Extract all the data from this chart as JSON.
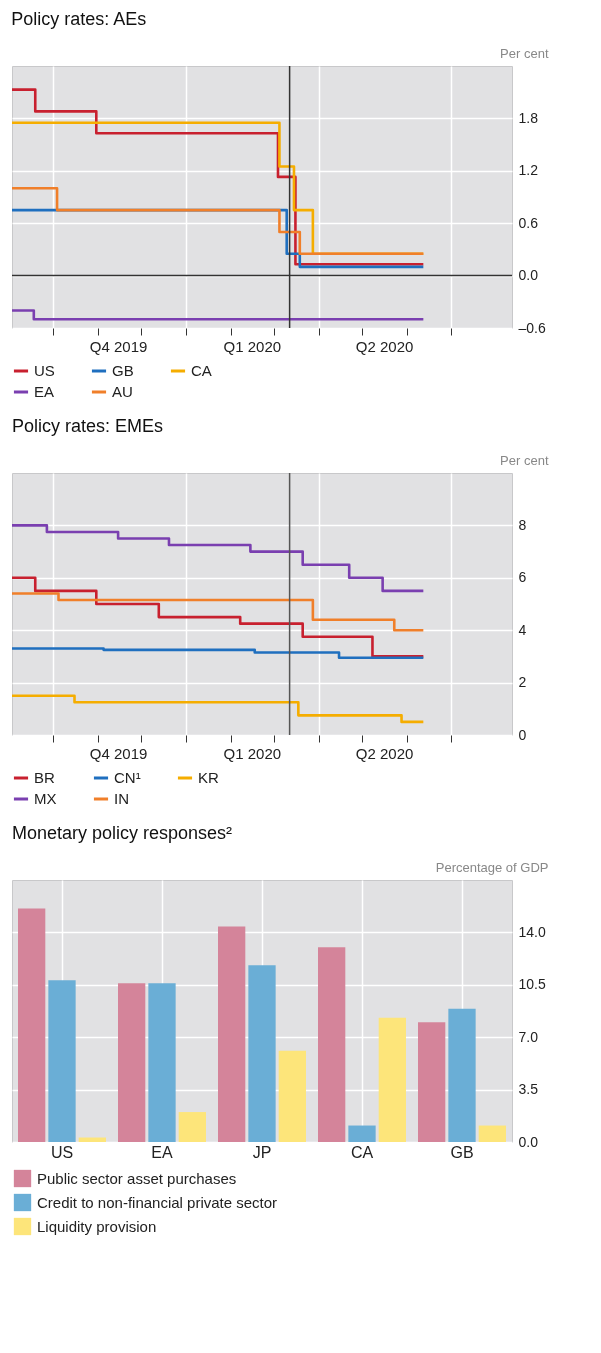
{
  "chart_data": [
    {
      "type": "step",
      "title": "Policy rates: AEs",
      "ylabel": "Per cent",
      "xlim": [
        "2019-09-03",
        "2020-08-12"
      ],
      "ylim": [
        -0.6,
        2.4
      ],
      "yticks": [
        {
          "value": -0.6,
          "label": "–0.6"
        },
        {
          "value": 0,
          "label": "0.0"
        },
        0.6,
        1.2,
        1.8
      ],
      "xticks": [
        {
          "value": "2019-10-01",
          "label": null
        },
        {
          "value": "2019-11-01",
          "label": null
        },
        {
          "value": "2019-12-01",
          "label": null
        },
        {
          "value": "2020-01-01",
          "label": null
        },
        {
          "value": "2020-02-01",
          "label": null
        },
        {
          "value": "2020-03-01",
          "label": null
        },
        {
          "value": "2020-04-01",
          "label": null
        },
        {
          "value": "2020-05-01",
          "label": null
        },
        {
          "value": "2020-06-01",
          "label": null
        },
        {
          "value": "2020-07-01",
          "label": null
        },
        {
          "value": "2019-11-15",
          "label": "Q4 2019"
        },
        {
          "value": "2020-02-15",
          "label": "Q1 2020"
        },
        {
          "value": "2020-05-16",
          "label": "Q2 2020"
        }
      ],
      "grid": true,
      "legend": "bottom",
      "line_style": "solid",
      "marker": "none",
      "ref_lines": [
        {
          "axis": "x",
          "value": "2020-03-12",
          "label": null,
          "color": "#333333"
        },
        {
          "axis": "y",
          "value": 0,
          "label": null,
          "color": "#333333"
        }
      ],
      "series": [
        {
          "name": "US",
          "color": "#c8202f",
          "x": [
            "2019-09-03",
            "2019-09-19",
            "2019-10-31",
            "2020-03-04",
            "2020-03-16",
            "2020-06-12"
          ],
          "values": [
            2.13,
            1.88,
            1.63,
            1.13,
            0.13,
            0.13
          ]
        },
        {
          "name": "GB",
          "color": "#1f6fbf",
          "x": [
            "2019-09-03",
            "2020-03-10",
            "2020-03-19",
            "2020-06-12"
          ],
          "values": [
            0.75,
            0.25,
            0.1,
            0.1
          ]
        },
        {
          "name": "CA",
          "color": "#f5ad00",
          "x": [
            "2019-09-03",
            "2020-03-05",
            "2020-03-15",
            "2020-03-28",
            "2020-06-12"
          ],
          "values": [
            1.75,
            1.25,
            0.75,
            0.25,
            0.25
          ]
        },
        {
          "name": "EA",
          "color": "#7a3fb0",
          "x": [
            "2019-09-03",
            "2019-09-18",
            "2020-06-12"
          ],
          "values": [
            -0.4,
            -0.5,
            -0.5
          ]
        },
        {
          "name": "AU",
          "color": "#f07f2a",
          "x": [
            "2019-09-03",
            "2019-10-04",
            "2020-03-05",
            "2020-03-19",
            "2020-06-12"
          ],
          "values": [
            1.0,
            0.75,
            0.5,
            0.25,
            0.25
          ]
        }
      ]
    },
    {
      "type": "step",
      "title": "Policy rates: EMEs",
      "ylabel": "Per cent",
      "xlim": [
        "2019-09-03",
        "2020-08-12"
      ],
      "ylim": [
        0,
        10
      ],
      "yticks": [
        0,
        2,
        4,
        6,
        8
      ],
      "xticks": [
        {
          "value": "2019-10-01",
          "label": null
        },
        {
          "value": "2019-11-01",
          "label": null
        },
        {
          "value": "2019-12-01",
          "label": null
        },
        {
          "value": "2020-01-01",
          "label": null
        },
        {
          "value": "2020-02-01",
          "label": null
        },
        {
          "value": "2020-03-01",
          "label": null
        },
        {
          "value": "2020-04-01",
          "label": null
        },
        {
          "value": "2020-05-01",
          "label": null
        },
        {
          "value": "2020-06-01",
          "label": null
        },
        {
          "value": "2020-07-01",
          "label": null
        },
        {
          "value": "2019-11-15",
          "label": "Q4 2019"
        },
        {
          "value": "2020-02-15",
          "label": "Q1 2020"
        },
        {
          "value": "2020-05-16",
          "label": "Q2 2020"
        }
      ],
      "grid": true,
      "legend": "bottom",
      "line_style": "solid",
      "marker": "none",
      "ref_lines": [
        {
          "axis": "x",
          "value": "2020-03-12",
          "label": null,
          "color": "#555555"
        }
      ],
      "series": [
        {
          "name": "BR",
          "color": "#c8202f",
          "x": [
            "2019-09-03",
            "2019-09-19",
            "2019-10-31",
            "2019-12-13",
            "2020-02-07",
            "2020-03-21",
            "2020-05-08",
            "2020-06-12"
          ],
          "values": [
            6.0,
            5.5,
            5.0,
            4.5,
            4.25,
            3.75,
            3.0,
            3.0
          ]
        },
        {
          "name": "CN¹",
          "color": "#1f6fbf",
          "x": [
            "2019-09-03",
            "2019-11-05",
            "2020-02-17",
            "2020-04-15",
            "2020-06-12"
          ],
          "values": [
            3.3,
            3.25,
            3.15,
            2.95,
            2.95
          ]
        },
        {
          "name": "KR",
          "color": "#f5ad00",
          "x": [
            "2019-09-03",
            "2019-10-16",
            "2020-03-18",
            "2020-05-28",
            "2020-06-12"
          ],
          "values": [
            1.5,
            1.25,
            0.75,
            0.5,
            0.5
          ]
        },
        {
          "name": "MX",
          "color": "#7a3fb0",
          "x": [
            "2019-09-03",
            "2019-09-27",
            "2019-11-15",
            "2019-12-20",
            "2020-02-14",
            "2020-03-21",
            "2020-04-22",
            "2020-05-15",
            "2020-06-12"
          ],
          "values": [
            8.0,
            7.75,
            7.5,
            7.25,
            7.0,
            6.5,
            6.0,
            5.5,
            5.5
          ]
        },
        {
          "name": "IN",
          "color": "#f07f2a",
          "x": [
            "2019-09-03",
            "2019-10-05",
            "2020-03-28",
            "2020-05-23",
            "2020-06-12"
          ],
          "values": [
            5.4,
            5.15,
            4.4,
            4.0,
            4.0
          ]
        }
      ]
    },
    {
      "type": "bar",
      "title": "Monetary policy responses²",
      "ylabel": "Percentage of GDP",
      "categories": [
        "US",
        "EA",
        "JP",
        "CA",
        "GB"
      ],
      "ylim": [
        0,
        17.5
      ],
      "yticks": [
        {
          "value": 0,
          "label": "0.0"
        },
        {
          "value": 3.5,
          "label": "3.5"
        },
        {
          "value": 7,
          "label": "7.0"
        },
        {
          "value": 10.5,
          "label": "10.5"
        },
        {
          "value": 14,
          "label": "14.0"
        }
      ],
      "grid": true,
      "legend": "bottom",
      "series": [
        {
          "name": "Public sector asset purchases",
          "color": "#d4849a",
          "values": [
            15.6,
            10.6,
            14.4,
            13.0,
            8.0
          ]
        },
        {
          "name": "Credit to non-financial private sector",
          "color": "#6aaed6",
          "values": [
            10.8,
            10.6,
            11.8,
            1.1,
            8.9
          ]
        },
        {
          "name": "Liquidity provision",
          "color": "#fde57a",
          "values": [
            0.3,
            2.0,
            6.1,
            8.3,
            1.1
          ]
        }
      ]
    }
  ]
}
